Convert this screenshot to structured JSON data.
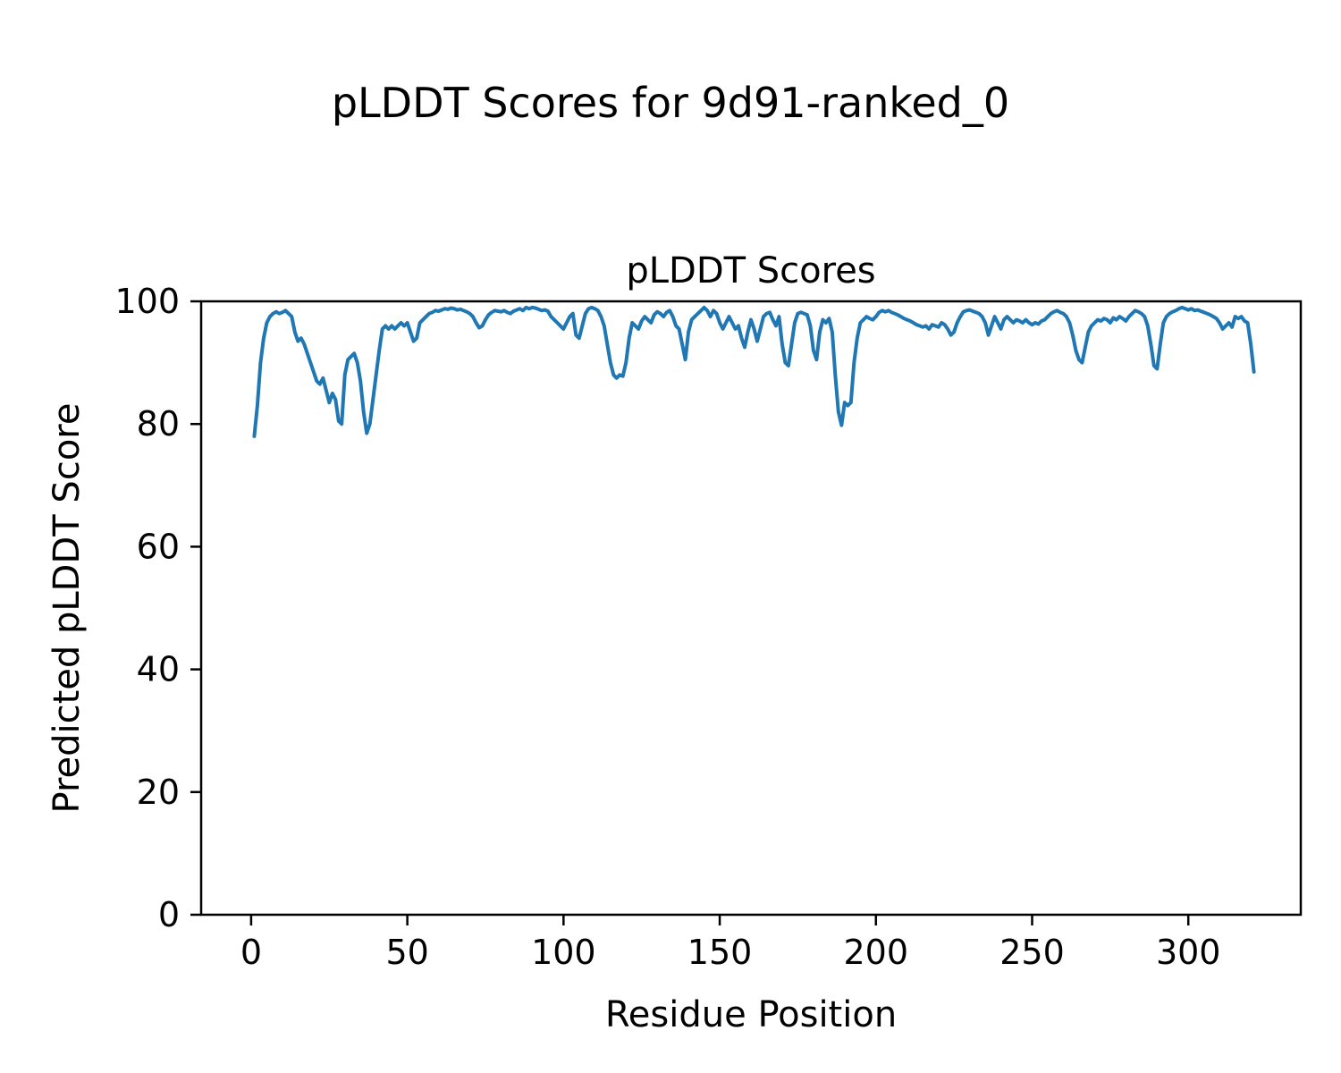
{
  "figure": {
    "suptitle": "pLDDT Scores for 9d91-ranked_0",
    "background_color": "#ffffff",
    "spine_color": "#000000"
  },
  "chart_data": {
    "type": "line",
    "title": "pLDDT Scores",
    "xlabel": "Residue Position",
    "ylabel": "Predicted pLDDT Score",
    "xlim": [
      -16,
      336
    ],
    "ylim": [
      0,
      100
    ],
    "xticks": [
      0,
      50,
      100,
      150,
      200,
      250,
      300
    ],
    "yticks": [
      0,
      20,
      40,
      60,
      80,
      100
    ],
    "grid": false,
    "legend": null,
    "line_color": "#1f77b4",
    "line_width": 4,
    "series": [
      {
        "name": "pLDDT",
        "x_start": 1,
        "x_step": 1,
        "values": [
          78,
          83,
          90,
          94,
          96.5,
          97.5,
          98,
          98.3,
          98,
          98.2,
          98.5,
          98,
          97.5,
          95,
          93.5,
          94,
          93,
          91.5,
          90,
          88.5,
          87,
          86.5,
          87.5,
          85.5,
          83.5,
          85,
          84,
          80.5,
          80,
          88,
          90.5,
          91,
          91.5,
          90,
          87,
          82,
          78.5,
          80,
          84,
          88,
          92,
          95.5,
          96,
          95.5,
          96,
          95.5,
          96,
          96.5,
          96,
          96.5,
          95,
          93.5,
          94,
          96.5,
          97,
          97.5,
          98,
          98.2,
          98.5,
          98.4,
          98.6,
          98.8,
          98.7,
          98.9,
          98.8,
          98.6,
          98.7,
          98.5,
          98.3,
          98,
          97.5,
          96.5,
          95.7,
          96,
          97,
          97.8,
          98.2,
          98.5,
          98.4,
          98.3,
          98.5,
          98.2,
          98,
          98.4,
          98.6,
          98.8,
          98.5,
          99,
          98.8,
          99,
          98.9,
          98.7,
          98.5,
          98.6,
          98.4,
          97.5,
          97,
          96.5,
          96,
          95.5,
          96.5,
          97.5,
          98,
          94.5,
          94,
          96,
          98,
          98.8,
          99,
          98.8,
          98.5,
          97.5,
          96,
          93,
          90,
          88,
          87.5,
          88,
          87.8,
          90,
          94,
          96.5,
          96,
          95.5,
          96.8,
          97.5,
          97,
          96.5,
          97.8,
          98.3,
          98,
          97.5,
          98.2,
          98.5,
          97.5,
          96,
          95.5,
          93,
          90.5,
          95,
          97,
          97.5,
          98,
          98.5,
          99,
          98.5,
          97.5,
          98.5,
          98,
          96.5,
          95.5,
          96.5,
          97.5,
          96.5,
          95.5,
          96,
          94,
          92.5,
          95,
          97,
          95.5,
          93.5,
          95.5,
          97.5,
          98,
          98.2,
          97,
          96,
          97.5,
          93,
          90,
          89.5,
          93,
          96.5,
          98,
          98.2,
          98,
          97.8,
          96,
          92,
          90.5,
          95,
          97,
          96.5,
          97.2,
          95,
          88,
          82,
          79.8,
          83.5,
          83,
          83.5,
          90,
          94,
          96.5,
          97,
          97.5,
          97.2,
          97,
          97.5,
          98.2,
          98.5,
          98.3,
          98.5,
          98.2,
          98,
          97.8,
          97.5,
          97.2,
          97,
          96.8,
          96.5,
          96.2,
          96,
          95.8,
          96,
          95.5,
          96.2,
          96,
          95.8,
          96.5,
          96.2,
          95.5,
          94.5,
          95,
          96.5,
          97.5,
          98.3,
          98.5,
          98.6,
          98.4,
          98.2,
          98,
          97.5,
          96.5,
          94.5,
          96,
          97.5,
          96.5,
          95.5,
          97,
          97.5,
          97,
          96.5,
          97,
          96.8,
          96.5,
          97,
          96.5,
          96.2,
          96.5,
          96.3,
          96.8,
          97,
          97.5,
          98,
          98.3,
          98.5,
          98.2,
          98,
          97.5,
          96.5,
          94.5,
          92,
          90.5,
          90,
          92.5,
          95,
          96,
          96.5,
          97,
          96.8,
          97.2,
          97,
          96.5,
          97.3,
          97,
          97.5,
          97.2,
          96.8,
          97.5,
          98,
          98.5,
          98.3,
          98,
          97.5,
          96,
          93,
          89.5,
          89,
          93,
          96.5,
          97.5,
          98,
          98.3,
          98.5,
          98.8,
          99,
          98.8,
          98.6,
          98.8,
          98.5,
          98.6,
          98.4,
          98.2,
          98,
          97.8,
          97.5,
          97.2,
          96.5,
          95.5,
          96,
          96.5,
          95.8,
          97.5,
          97.2,
          97.5,
          96.8,
          96.5,
          93,
          88.5
        ]
      }
    ]
  }
}
